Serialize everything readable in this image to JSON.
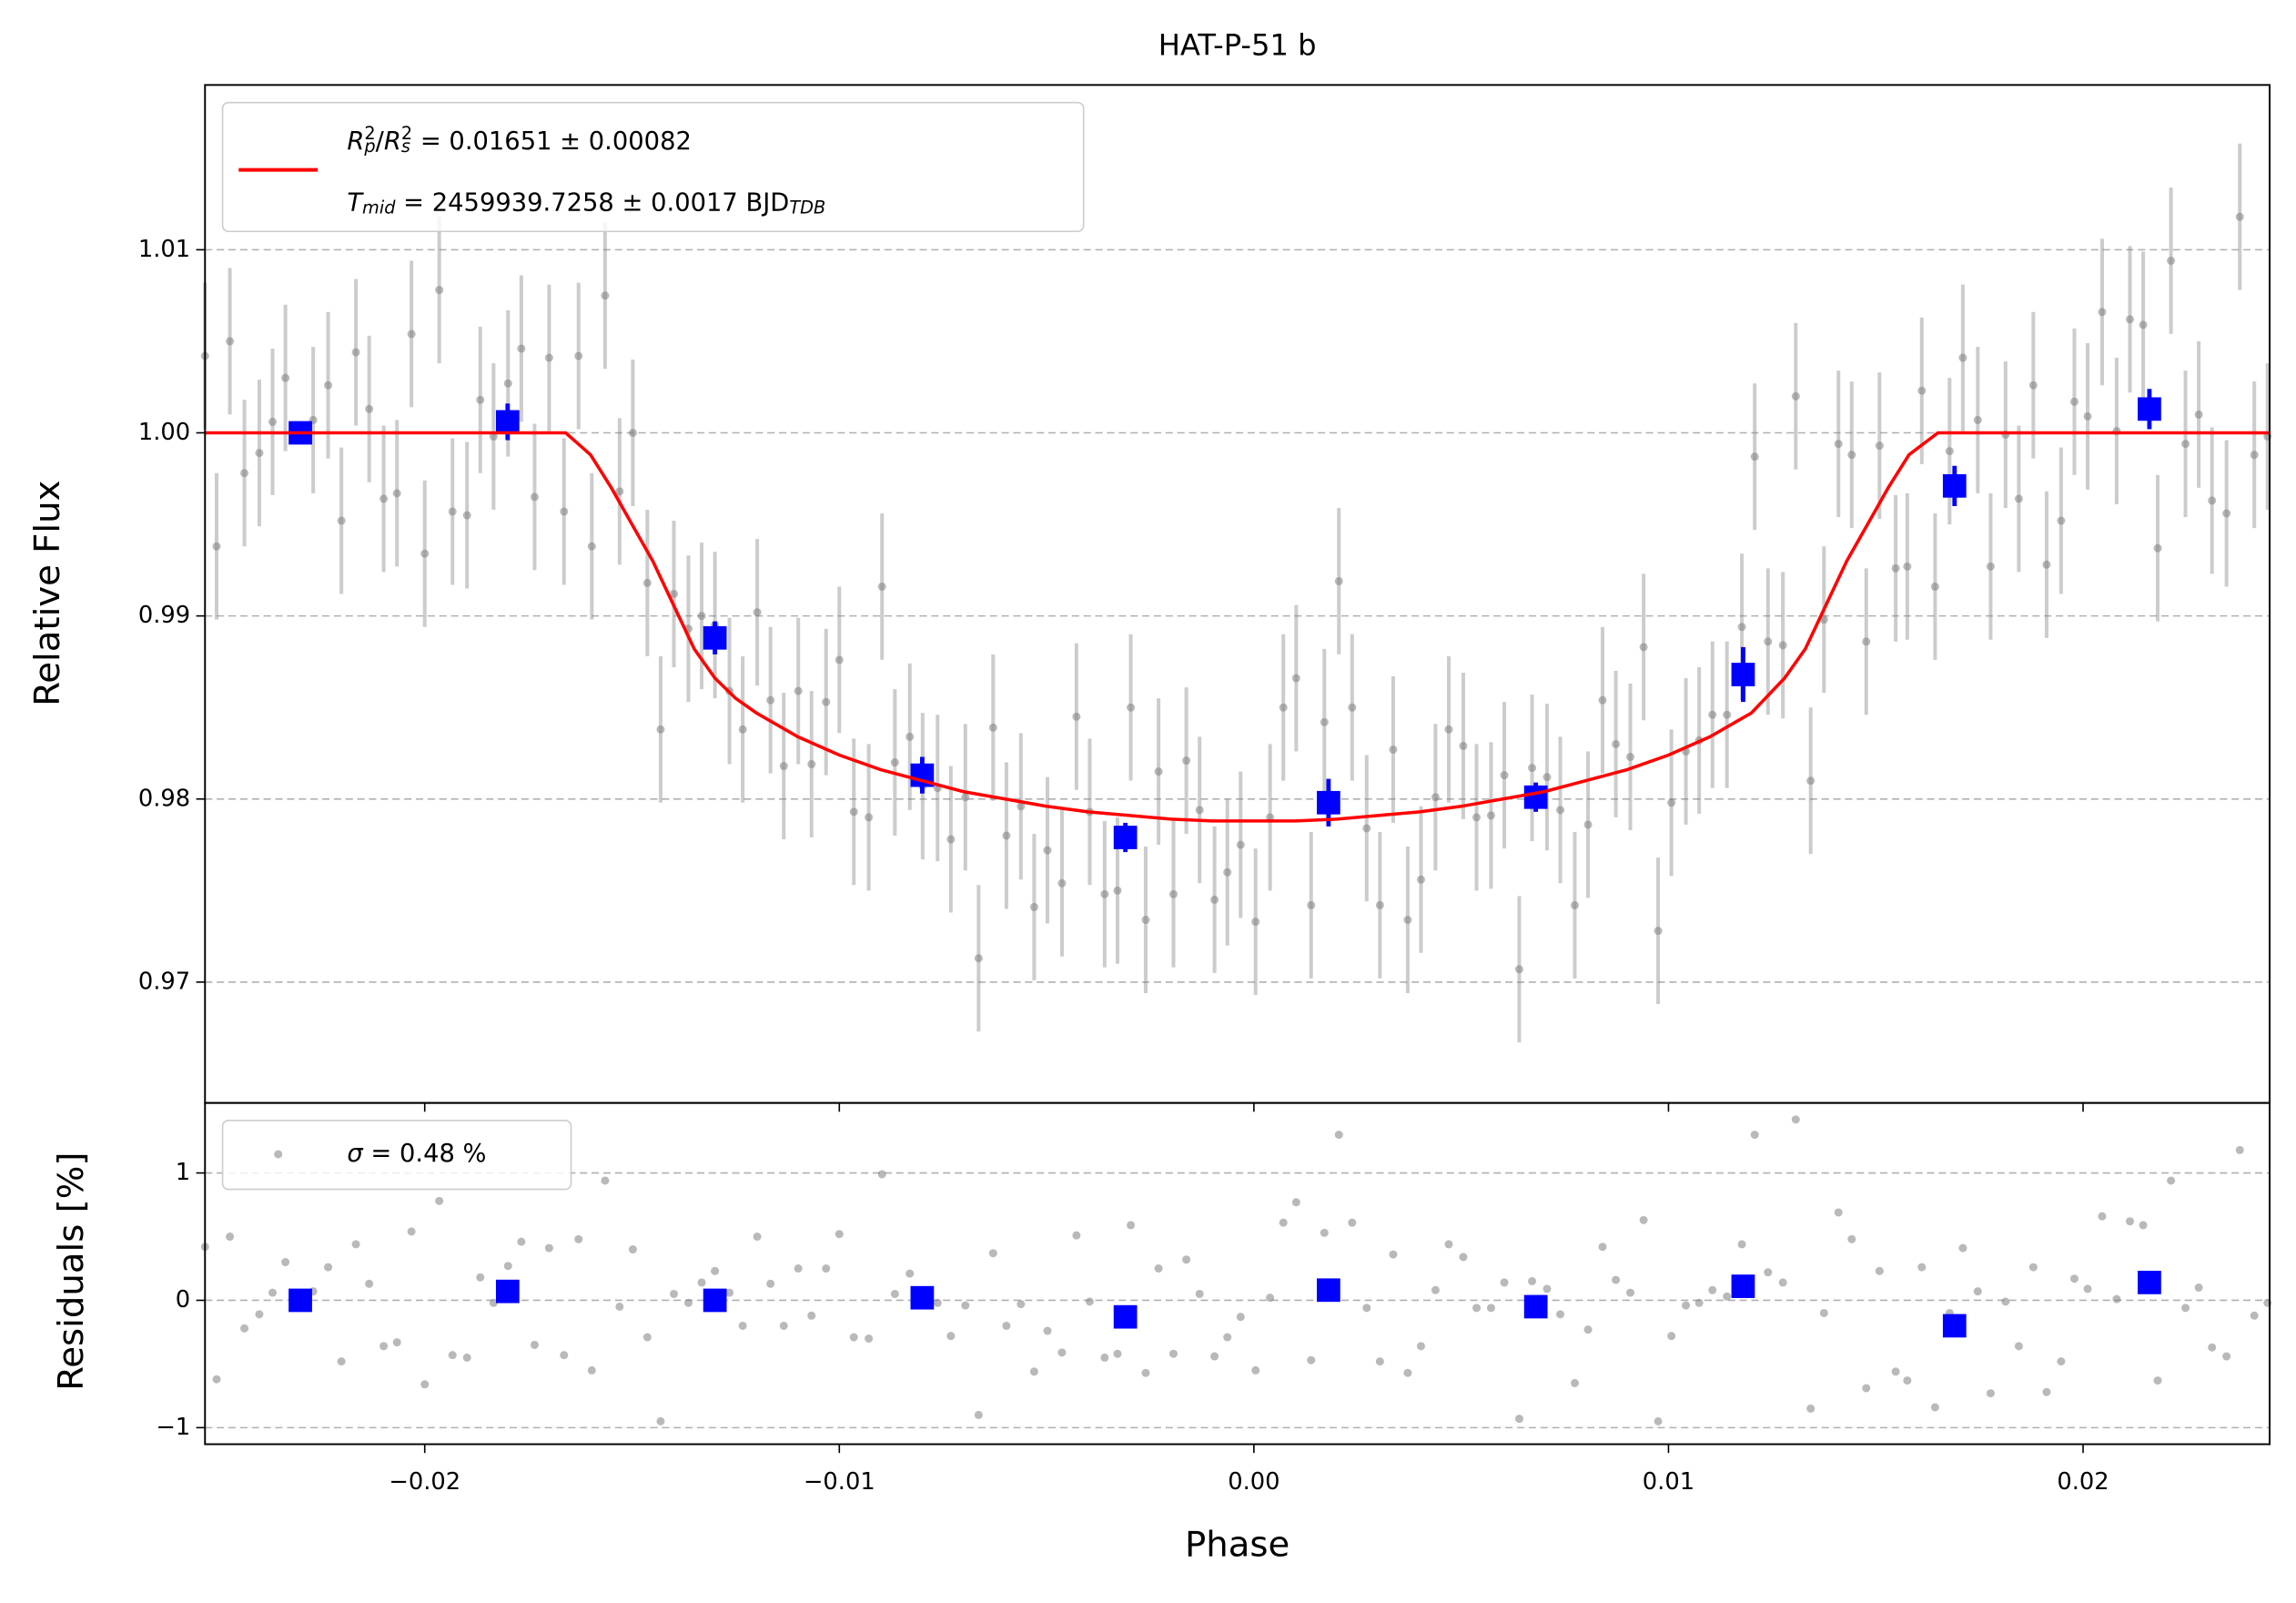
{
  "chart_data": [
    {
      "type": "errorbar",
      "title": "HAT-P-51 b",
      "ylabel": "Relative Flux",
      "xlim": [
        -0.0253,
        0.0245
      ],
      "ylim": [
        0.9634,
        1.019
      ],
      "yticks": [
        0.97,
        0.98,
        0.99,
        {
          "value": 1,
          "label": "1.00"
        },
        1.01
      ],
      "grid": "y",
      "legend": "upper left",
      "series": [
        {
          "kind": "points",
          "color": "#808080",
          "error": 0.004,
          "x": [
            -0.0253,
            -0.02502,
            -0.0247,
            -0.02435,
            -0.02399,
            -0.02367,
            -0.02336,
            -0.02269,
            -0.02233,
            -0.02201,
            -0.02166,
            -0.02134,
            -0.02099,
            -0.02067,
            -0.02032,
            -0.02,
            -0.01965,
            -0.01933,
            -0.01898,
            -0.01866,
            -0.01834,
            -0.01799,
            -0.01767,
            -0.01735,
            -0.017,
            -0.01664,
            -0.01629,
            -0.01597,
            -0.01565,
            -0.0153,
            -0.01498,
            -0.01463,
            -0.01431,
            -0.01399,
            -0.01364,
            -0.01332,
            -0.013,
            -0.01265,
            -0.01233,
            -0.01198,
            -0.01166,
            -0.01134,
            -0.01099,
            -0.01067,
            -0.01032,
            -0.01,
            -0.00965,
            -0.00929,
            -0.00897,
            -0.00866,
            -0.0083,
            -0.00799,
            -0.00763,
            -0.00731,
            -0.00696,
            -0.00664,
            -0.00629,
            -0.00597,
            -0.00562,
            -0.0053,
            -0.00498,
            -0.00463,
            -0.00428,
            -0.00396,
            -0.0036,
            -0.00329,
            -0.00297,
            -0.00261,
            -0.0023,
            -0.00194,
            -0.00163,
            -0.00131,
            -0.00095,
            -0.00064,
            -0.00032,
            4e-05,
            0.00039,
            0.00071,
            0.00102,
            0.00138,
            0.0017,
            0.00205,
            0.00237,
            0.00272,
            0.00304,
            0.00336,
            0.00371,
            0.00403,
            0.00438,
            0.0047,
            0.00505,
            0.00537,
            0.00572,
            0.00604,
            0.0064,
            0.00671,
            0.00707,
            0.00739,
            0.00774,
            0.00806,
            0.00841,
            0.00873,
            0.00908,
            0.0094,
            0.00975,
            0.01007,
            0.01042,
            0.01074,
            0.01106,
            0.01141,
            0.01177,
            0.01208,
            0.0124,
            0.01276,
            0.01307,
            0.01343,
            0.01375,
            0.0141,
            0.01442,
            0.01477,
            0.01509,
            0.01548,
            0.01576,
            0.01611,
            0.01643,
            0.01678,
            0.0171,
            0.01746,
            0.01777,
            0.01813,
            0.01845,
            0.0188,
            0.01912,
            0.01947,
            0.01979,
            0.02011,
            0.02046,
            0.02081,
            0.02113,
            0.02145,
            0.0218,
            0.02212,
            0.02247,
            0.02279,
            0.02311,
            0.02346,
            0.02378,
            0.02413,
            0.02445
          ],
          "values": [
            1.0042,
            0.9938,
            1.005,
            0.9978,
            0.9989,
            1.0006,
            1.003,
            1.0007,
            1.0026,
            0.9952,
            1.0044,
            1.0013,
            0.9964,
            0.9967,
            1.0054,
            0.9934,
            1.0078,
            0.9957,
            0.9955,
            1.0018,
            0.9998,
            1.0027,
            1.0046,
            0.9965,
            1.0041,
            0.9957,
            1.0042,
            0.9938,
            1.0075,
            0.9968,
            1.0,
            0.9918,
            0.9838,
            0.9912,
            0.9893,
            0.99,
            0.9895,
            0.9859,
            0.9838,
            0.9902,
            0.9854,
            0.9818,
            0.9859,
            0.9819,
            0.9853,
            0.9876,
            0.9793,
            0.979,
            0.9916,
            0.982,
            0.9834,
            0.9807,
            0.9806,
            0.9778,
            0.9801,
            0.9713,
            0.9839,
            0.978,
            0.9796,
            0.9741,
            0.9772,
            0.9754,
            0.9845,
            0.9793,
            0.9748,
            0.975,
            0.985,
            0.9734,
            0.9815,
            0.9748,
            0.9821,
            0.9794,
            0.9745,
            0.976,
            0.9775,
            0.9733,
            0.979,
            0.985,
            0.9866,
            0.9742,
            0.9842,
            0.9919,
            0.985,
            0.9784,
            0.9742,
            0.9827,
            0.9734,
            0.9756,
            0.9801,
            0.9838,
            0.9829,
            0.979,
            0.9791,
            0.9813,
            0.9707,
            0.9817,
            0.9812,
            0.9794,
            0.9742,
            0.9786,
            0.9854,
            0.983,
            0.9823,
            0.9883,
            0.9728,
            0.9798,
            0.9826,
            0.9832,
            0.9846,
            0.9846,
            0.9894,
            0.9987,
            0.9886,
            0.9884,
            1.002,
            0.981,
            0.9898,
            0.9994,
            0.9988,
            0.9886,
            0.9993,
            0.9926,
            0.9927,
            1.0023,
            0.9916,
            0.999,
            1.0041,
            1.0007,
            0.9927,
            0.9999,
            0.9964,
            1.0026,
            0.9928,
            0.9952,
            1.0017,
            1.0009,
            1.0066,
            1.0001,
            1.0062,
            1.0059,
            0.9937,
            1.0094,
            0.9994,
            1.001,
            0.9963,
            0.9956,
            1.0118,
            0.9988,
            0.9998
          ]
        },
        {
          "kind": "binned",
          "color": "#0000ff",
          "x": [
            -0.023,
            -0.018,
            -0.013,
            -0.008,
            -0.0031,
            0.0018,
            0.0068,
            0.0118,
            0.0169,
            0.0216
          ],
          "values": [
            1.0,
            1.0006,
            0.9888,
            0.9813,
            0.9779,
            0.9798,
            0.9801,
            0.9868,
            0.9971,
            1.0013
          ],
          "errors": [
            0.0006,
            0.001,
            0.0009,
            0.001,
            0.0008,
            0.0013,
            0.0008,
            0.0015,
            0.0011,
            0.0011
          ]
        },
        {
          "kind": "model",
          "color": "#ff0000",
          "x": [
            -0.0253,
            -0.0166,
            -0.016,
            -0.0155,
            -0.015,
            -0.0145,
            -0.014,
            -0.0135,
            -0.013,
            -0.0125,
            -0.012,
            -0.011,
            -0.01,
            -0.009,
            -0.008,
            -0.007,
            -0.006,
            -0.005,
            -0.004,
            -0.003,
            -0.002,
            -0.001,
            0,
            0.001,
            0.002,
            0.003,
            0.004,
            0.005,
            0.006,
            0.007,
            0.008,
            0.009,
            0.01,
            0.011,
            0.012,
            0.0128,
            0.0133,
            0.0138,
            0.0143,
            0.0148,
            0.0153,
            0.0158,
            0.0165,
            0.0245
          ],
          "values": [
            1,
            1,
            0.9988,
            0.997,
            0.995,
            0.993,
            0.9906,
            0.9882,
            0.9866,
            0.9855,
            0.9847,
            0.9834,
            0.9824,
            0.9816,
            0.981,
            0.9804,
            0.98,
            0.9796,
            0.9793,
            0.9791,
            0.9789,
            0.9788,
            0.9788,
            0.9788,
            0.9789,
            0.9791,
            0.9793,
            0.9796,
            0.98,
            0.9804,
            0.981,
            0.9816,
            0.9824,
            0.9834,
            0.9847,
            0.9866,
            0.9882,
            0.9906,
            0.993,
            0.995,
            0.997,
            0.9988,
            1,
            1
          ],
          "name_lines": [
            [
              {
                "t": "R",
                "style": "italic"
              },
              {
                "t": "p",
                "pos": "sub",
                "style": "italic"
              },
              {
                "t": "2",
                "pos": "sup"
              },
              {
                "t": "/"
              },
              {
                "t": "R",
                "style": "italic"
              },
              {
                "t": "s",
                "pos": "sub",
                "style": "italic"
              },
              {
                "t": "2",
                "pos": "sup"
              },
              {
                "t": " = 0.01651 ± 0.00082"
              }
            ],
            [
              {
                "t": "T",
                "style": "italic"
              },
              {
                "t": "mid",
                "pos": "sub",
                "style": "italic"
              },
              {
                "t": " = 2459939.7258 ± 0.0017 BJD"
              },
              {
                "t": "TDB",
                "pos": "sub",
                "style": "italic"
              }
            ]
          ]
        }
      ]
    },
    {
      "type": "scatter",
      "xlabel": "Phase",
      "ylabel": "Residuals [%]",
      "xlim": [
        -0.0253,
        0.0245
      ],
      "ylim": [
        -1.13,
        1.55
      ],
      "xticks": [
        {
          "value": -0.02,
          "label": "−0.02"
        },
        {
          "value": -0.01,
          "label": "−0.01"
        },
        {
          "value": 0,
          "label": "0.00"
        },
        0.01,
        0.02
      ],
      "yticks": [
        {
          "value": -1,
          "label": "−1"
        },
        0,
        1
      ],
      "grid": "y",
      "legend": "upper left",
      "series": [
        {
          "kind": "points",
          "color": "#808080",
          "name_lines": [
            [
              {
                "t": "σ",
                "style": "italic"
              },
              {
                "t": " = 0.48 %"
              }
            ]
          ],
          "values": [
            0.42,
            -0.62,
            0.5,
            -0.22,
            -0.11,
            0.06,
            0.3,
            0.07,
            0.26,
            -0.48,
            0.44,
            0.13,
            -0.36,
            -0.33,
            0.54,
            -0.66,
            0.78,
            -0.43,
            -0.45,
            0.18,
            -0.02,
            0.27,
            0.46,
            -0.35,
            0.41,
            -0.43,
            0.48,
            -0.55,
            0.94,
            -0.05,
            0.4,
            -0.29,
            -0.95,
            0.05,
            -0.02,
            0.14,
            0.23,
            0.06,
            -0.2,
            0.5,
            0.13,
            -0.2,
            0.25,
            -0.12,
            0.25,
            0.52,
            -0.29,
            -0.3,
            0.99,
            0.05,
            0.21,
            -0.03,
            -0.02,
            -0.28,
            -0.04,
            -0.9,
            0.37,
            -0.2,
            -0.03,
            -0.56,
            -0.24,
            -0.41,
            0.51,
            -0.01,
            -0.45,
            -0.42,
            0.59,
            -0.57,
            0.25,
            -0.42,
            0.32,
            0.05,
            -0.44,
            -0.29,
            -0.13,
            -0.55,
            0.02,
            0.61,
            0.77,
            -0.47,
            0.53,
            1.3,
            0.61,
            -0.06,
            -0.48,
            0.36,
            -0.57,
            -0.36,
            0.08,
            0.44,
            0.34,
            -0.06,
            -0.06,
            0.14,
            -0.93,
            0.15,
            0.09,
            -0.11,
            -0.65,
            -0.23,
            0.42,
            0.16,
            0.06,
            0.63,
            -0.95,
            -0.28,
            -0.04,
            -0.02,
            0.08,
            0.03,
            0.44,
            1.3,
            0.22,
            0.14,
            1.42,
            -0.85,
            -0.1,
            0.69,
            0.48,
            -0.69,
            0.23,
            -0.56,
            -0.63,
            0.26,
            -0.84,
            -0.1,
            0.41,
            0.07,
            -0.73,
            -0.01,
            -0.36,
            0.26,
            -0.72,
            -0.48,
            0.17,
            0.09,
            0.66,
            0.01,
            0.62,
            0.59,
            -0.63,
            0.94,
            -0.06,
            0.1,
            -0.37,
            -0.44,
            1.18,
            -0.12,
            -0.02
          ]
        },
        {
          "kind": "binned",
          "color": "#0000ff",
          "values": [
            0.0,
            0.07,
            0.0,
            0.02,
            -0.13,
            0.08,
            -0.05,
            0.11,
            -0.2,
            0.14
          ]
        }
      ]
    }
  ]
}
